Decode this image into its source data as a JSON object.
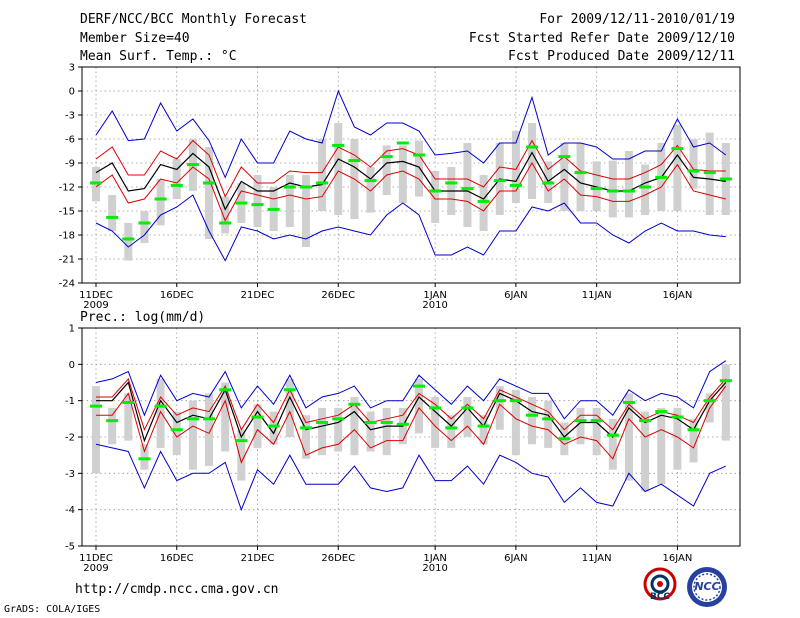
{
  "header": {
    "title": "DERF/NCC/BCC Monthly Forecast",
    "member_size": "Member Size=40",
    "var1_label": "Mean Surf. Temp.: °C",
    "period": "For 2009/12/11-2010/01/19",
    "started": "Fcst Started Refer Date 2009/12/10",
    "produced": "Fcst Produced Date 2009/12/11"
  },
  "var2_label": "Prec.: log(mm/d)",
  "footer": {
    "url": "http://cmdp.ncc.cma.gov.cn",
    "grads": "GrADS: COLA/IGES",
    "logo1_text": "BCC",
    "logo2_text": "NCC"
  },
  "colors": {
    "mean": "#000000",
    "spread": "#dd0000",
    "minmax": "#0000cc",
    "obs": "#00ee00",
    "box": "#d0d0d0"
  },
  "chart_data": [
    {
      "type": "line",
      "title": "Mean Surf. Temp.: °C",
      "ylim": [
        -24,
        3
      ],
      "yticks": [
        "3",
        "0",
        "-3",
        "-6",
        "-9",
        "-12",
        "-15",
        "-18",
        "-21",
        "-24"
      ],
      "ytick_values": [
        3,
        0,
        -3,
        -6,
        -9,
        -12,
        -15,
        -18,
        -21,
        -24
      ],
      "xtick_labels": [
        "11DEC",
        "16DEC",
        "21DEC",
        "26DEC",
        "1JAN",
        "6JAN",
        "11JAN",
        "16JAN"
      ],
      "xtick_days": [
        1,
        6,
        11,
        16,
        22,
        27,
        32,
        37
      ],
      "year_labels": [
        {
          "text": "2009",
          "day": 1
        },
        {
          "text": "2010",
          "day": 22
        }
      ],
      "x": [
        1,
        2,
        3,
        4,
        5,
        6,
        7,
        8,
        9,
        10,
        11,
        12,
        13,
        14,
        15,
        16,
        17,
        18,
        19,
        20,
        21,
        22,
        23,
        24,
        25,
        26,
        27,
        28,
        29,
        30,
        31,
        32,
        33,
        34,
        35,
        36,
        37,
        38,
        39,
        40
      ],
      "series": [
        {
          "name": "mean",
          "values": [
            -10.2,
            -9,
            -12.5,
            -12.2,
            -9.2,
            -9.8,
            -7.8,
            -9.5,
            -14.8,
            -11.3,
            -12.5,
            -12.5,
            -11.5,
            -12,
            -11.7,
            -8.5,
            -9.5,
            -11,
            -9,
            -8.8,
            -9.5,
            -12.5,
            -12.5,
            -12.5,
            -13.5,
            -11,
            -11.3,
            -7.7,
            -11.3,
            -9.8,
            -11.5,
            -12,
            -12.5,
            -12.5,
            -11.5,
            -10.8,
            -8,
            -10.8,
            -11,
            -11.3
          ]
        },
        {
          "name": "upper_spread",
          "values": [
            -8.5,
            -7,
            -10.5,
            -10.5,
            -7.5,
            -8.5,
            -6.2,
            -8,
            -13.2,
            -9.5,
            -11.5,
            -11.5,
            -10,
            -10.2,
            -10.2,
            -7,
            -8,
            -9.5,
            -7.5,
            -7.2,
            -8,
            -11,
            -11,
            -11,
            -12,
            -9.5,
            -9.8,
            -6.2,
            -9.8,
            -8.2,
            -10,
            -10.5,
            -11,
            -11,
            -10.2,
            -9.2,
            -6.8,
            -9.8,
            -10,
            -10
          ]
        },
        {
          "name": "lower_spread",
          "values": [
            -12,
            -10.5,
            -14,
            -13.5,
            -11,
            -11.5,
            -9.5,
            -11,
            -16.2,
            -12.5,
            -13,
            -13.5,
            -13,
            -13.5,
            -13.2,
            -10,
            -11,
            -12.5,
            -10.5,
            -10,
            -11,
            -13.5,
            -13.5,
            -13.8,
            -15,
            -12.5,
            -12.5,
            -9,
            -12.5,
            -11,
            -13,
            -13.2,
            -13.8,
            -13.8,
            -13,
            -12,
            -9.2,
            -12.5,
            -13,
            -13.5
          ]
        },
        {
          "name": "max",
          "values": [
            -5.5,
            -2.5,
            -6.2,
            -6,
            -1.5,
            -5,
            -3.5,
            -6.2,
            -10.8,
            -6,
            -9,
            -9,
            -5,
            -6,
            -6.5,
            0,
            -4.5,
            -5.5,
            -4,
            -4,
            -5,
            -8,
            -7.8,
            -7.5,
            -9,
            -6.5,
            -6.5,
            -0.8,
            -8,
            -6.5,
            -6.5,
            -7,
            -8.5,
            -8.5,
            -7.5,
            -7.5,
            -3.5,
            -7,
            -6.5,
            -8
          ]
        },
        {
          "name": "min",
          "values": [
            -16.5,
            -17.5,
            -19.5,
            -18,
            -15.5,
            -14.5,
            -13,
            -17.5,
            -21.2,
            -17,
            -17.5,
            -18.5,
            -18,
            -18.5,
            -17.5,
            -17,
            -17.5,
            -18,
            -15.5,
            -14,
            -15.5,
            -20.5,
            -20.5,
            -19.5,
            -20.5,
            -17.5,
            -17.5,
            -14.5,
            -15,
            -14,
            -16.5,
            -16.5,
            -18,
            -19,
            -17.5,
            -16.5,
            -17.5,
            -17.5,
            -18,
            -18.2
          ]
        },
        {
          "name": "observed",
          "values": [
            -11.5,
            -15.8,
            -18.5,
            -16.5,
            -13.5,
            -11.8,
            -9.2,
            -11.5,
            -16.5,
            -14,
            -14.2,
            -14.8,
            -12,
            -12,
            -11.5,
            -6.8,
            -8.7,
            -11.2,
            -8.2,
            -6.5,
            -8,
            -12.5,
            -11.5,
            -12.2,
            -13.8,
            -11.2,
            -11.8,
            -7,
            -11.5,
            -8.2,
            -10.2,
            -12.2,
            -12.5,
            -12.5,
            -12,
            -10.8,
            -7.2,
            -10,
            -10.2,
            -11
          ]
        },
        {
          "name": "box_top",
          "values": [
            -9.5,
            -13,
            -16.5,
            -15,
            -11,
            -8.5,
            -6,
            -7,
            -13.2,
            -11.5,
            -10.5,
            -12,
            -10.5,
            -10.5,
            -6,
            -4,
            -6,
            -9.5,
            -6.8,
            -6.8,
            -6.2,
            -10,
            -9.5,
            -6.5,
            -10.5,
            -6.5,
            -5,
            -4,
            -8.8,
            -6.5,
            -6.5,
            -8.8,
            -8.7,
            -7.5,
            -9.2,
            -6.5,
            -4.2,
            -6,
            -5.2,
            -6.5
          ]
        },
        {
          "name": "box_bottom",
          "values": [
            -13.8,
            -17.5,
            -21.2,
            -19,
            -16.8,
            -13.5,
            -12.5,
            -18.5,
            -17.8,
            -16.5,
            -17,
            -17.5,
            -17,
            -19.5,
            -15,
            -15.5,
            -16,
            -15.2,
            -13,
            -14,
            -13.2,
            -16.5,
            -15.5,
            -17,
            -17.5,
            -15.5,
            -14,
            -13.5,
            -14,
            -15,
            -15,
            -15,
            -15.8,
            -15.8,
            -15.5,
            -15,
            -15,
            -12.2,
            -15.5,
            -15.5
          ]
        }
      ]
    },
    {
      "type": "line",
      "title": "Prec.: log(mm/d)",
      "ylim": [
        -5,
        1
      ],
      "yticks": [
        "1",
        "0",
        "-1",
        "-2",
        "-3",
        "-4",
        "-5"
      ],
      "ytick_values": [
        1,
        0,
        -1,
        -2,
        -3,
        -4,
        -5
      ],
      "xtick_labels": [
        "11DEC",
        "16DEC",
        "21DEC",
        "26DEC",
        "1JAN",
        "6JAN",
        "11JAN",
        "16JAN"
      ],
      "xtick_days": [
        1,
        6,
        11,
        16,
        22,
        27,
        32,
        37
      ],
      "year_labels": [
        {
          "text": "2009",
          "day": 1
        },
        {
          "text": "2010",
          "day": 22
        }
      ],
      "x": [
        1,
        2,
        3,
        4,
        5,
        6,
        7,
        8,
        9,
        10,
        11,
        12,
        13,
        14,
        15,
        16,
        17,
        18,
        19,
        20,
        21,
        22,
        23,
        24,
        25,
        26,
        27,
        28,
        29,
        30,
        31,
        32,
        33,
        34,
        35,
        36,
        37,
        38,
        39,
        40
      ],
      "series": [
        {
          "name": "mean",
          "values": [
            -1,
            -1,
            -0.5,
            -2.1,
            -1,
            -1.6,
            -1.4,
            -1.5,
            -0.7,
            -2,
            -1.3,
            -1.9,
            -0.9,
            -1.8,
            -1.7,
            -1.6,
            -1.3,
            -1.8,
            -1.7,
            -1.7,
            -0.9,
            -1.3,
            -1.7,
            -1.2,
            -1.7,
            -0.8,
            -1,
            -1.3,
            -1.4,
            -2,
            -1.6,
            -1.6,
            -2,
            -1.2,
            -1.6,
            -1.4,
            -1.5,
            -1.8,
            -1,
            -0.5
          ]
        },
        {
          "name": "upper_spread",
          "values": [
            -0.9,
            -0.9,
            -0.4,
            -1.8,
            -0.9,
            -1.4,
            -1.2,
            -1.3,
            -0.6,
            -1.8,
            -1.1,
            -1.6,
            -0.7,
            -1.6,
            -1.5,
            -1.4,
            -1.1,
            -1.6,
            -1.5,
            -1.4,
            -0.8,
            -1.1,
            -1.5,
            -1.1,
            -1.5,
            -0.7,
            -0.9,
            -1.1,
            -1.3,
            -1.8,
            -1.4,
            -1.4,
            -1.8,
            -1.1,
            -1.5,
            -1.3,
            -1.4,
            -1.6,
            -0.9,
            -0.4
          ]
        },
        {
          "name": "lower_spread",
          "values": [
            -1.4,
            -1.4,
            -0.8,
            -2.4,
            -1.3,
            -2,
            -1.7,
            -1.9,
            -1,
            -2.7,
            -1.8,
            -2.2,
            -1.3,
            -2.5,
            -2.3,
            -2.2,
            -1.8,
            -2.3,
            -2.1,
            -2.1,
            -1.2,
            -1.7,
            -2.1,
            -1.7,
            -2.2,
            -1.1,
            -1.5,
            -1.7,
            -1.8,
            -2.2,
            -2,
            -2.1,
            -2.6,
            -1.5,
            -2,
            -1.8,
            -2,
            -2.3,
            -1.2,
            -0.6
          ]
        },
        {
          "name": "max",
          "values": [
            -0.5,
            -0.4,
            -0.2,
            -1.4,
            -0.3,
            -1,
            -0.8,
            -0.9,
            -0.2,
            -1.2,
            -0.6,
            -1.1,
            -0.3,
            -1.2,
            -0.9,
            -0.8,
            -0.6,
            -1.2,
            -1,
            -1,
            -0.3,
            -0.7,
            -1.1,
            -0.6,
            -1,
            -0.4,
            -0.6,
            -0.8,
            -0.8,
            -1.5,
            -1,
            -1,
            -1.4,
            -0.7,
            -1,
            -0.8,
            -0.9,
            -1.2,
            -0.2,
            0.1
          ]
        },
        {
          "name": "min",
          "values": [
            -2.2,
            -2.3,
            -2.4,
            -3.4,
            -2.4,
            -3.2,
            -3,
            -3,
            -2.7,
            -4,
            -2.9,
            -3.3,
            -2.5,
            -3.3,
            -3.3,
            -3.3,
            -2.8,
            -3.4,
            -3.5,
            -3.4,
            -2.5,
            -3.2,
            -3.2,
            -2.8,
            -3.3,
            -2.5,
            -2.7,
            -3,
            -3.1,
            -3.8,
            -3.4,
            -3.8,
            -3.9,
            -3,
            -3.5,
            -3.3,
            -3.6,
            -3.9,
            -3,
            -2.8
          ]
        },
        {
          "name": "observed",
          "values": [
            -1.15,
            -1.55,
            -1.05,
            -2.6,
            -1.15,
            -1.8,
            -1.5,
            -1.5,
            -0.7,
            -2.1,
            -1.45,
            -1.7,
            -0.7,
            -1.75,
            -1.6,
            -1.5,
            -1.1,
            -1.6,
            -1.6,
            -1.65,
            -0.6,
            -1.2,
            -1.75,
            -1.2,
            -1.7,
            -1,
            -1,
            -1.4,
            -1.5,
            -2.05,
            -1.55,
            -1.55,
            -1.95,
            -1.05,
            -1.55,
            -1.3,
            -1.45,
            -1.8,
            -1,
            -0.45
          ]
        },
        {
          "name": "box_top",
          "values": [
            -0.6,
            -1.2,
            -0.8,
            -2.2,
            -0.4,
            -1.3,
            -1,
            -0.8,
            -0.5,
            -1.8,
            -1.1,
            -1.3,
            -0.4,
            -1.4,
            -1.2,
            -1.2,
            -0.9,
            -1.3,
            -1.2,
            -1.2,
            -0.4,
            -0.9,
            -1.4,
            -0.9,
            -1.4,
            -0.6,
            -0.7,
            -0.9,
            -1,
            -1.6,
            -1.2,
            -1.2,
            -1.5,
            -0.8,
            -1.3,
            -1.2,
            -1.2,
            -1.5,
            -0.8,
            0
          ]
        },
        {
          "name": "box_bottom",
          "values": [
            -3,
            -2.2,
            -2.1,
            -2.9,
            -2.3,
            -2.5,
            -2.9,
            -2.8,
            -2.4,
            -3.2,
            -2.3,
            -2.2,
            -2,
            -2.6,
            -2.5,
            -2.4,
            -2.5,
            -2.4,
            -2.5,
            -2.2,
            -1.9,
            -2.3,
            -2.3,
            -2,
            -2.2,
            -1.8,
            -2.5,
            -2.2,
            -2.3,
            -2.5,
            -2.2,
            -2.5,
            -2.9,
            -3.2,
            -3.5,
            -3.3,
            -2.9,
            -2.7,
            -1.6,
            -2.1
          ]
        }
      ]
    }
  ]
}
